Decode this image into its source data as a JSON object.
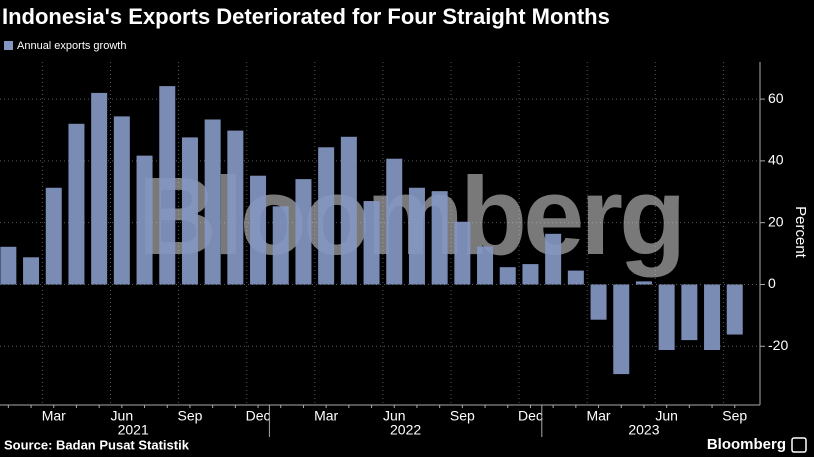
{
  "chart_data": {
    "type": "bar",
    "title": "Indonesia's Exports Deteriorated for Four Straight Months",
    "y_label": "Percent",
    "watermark": "Bloomberg",
    "source": "Source: Badan Pusat Statistik",
    "brand": "Bloomberg",
    "categories": [
      null,
      null,
      "Mar",
      null,
      null,
      "Jun",
      null,
      null,
      "Sep",
      null,
      null,
      "Dec",
      null,
      null,
      "Mar",
      null,
      null,
      "Jun",
      null,
      null,
      "Sep",
      null,
      null,
      "Dec",
      null,
      null,
      "Mar",
      null,
      null,
      "Jun",
      null,
      null,
      "Sep"
    ],
    "year_labels": [
      "2021",
      "2022",
      "2023"
    ],
    "series": [
      {
        "name": "Annual exports growth",
        "color": "#8497c3",
        "values": [
          12.2,
          8.8,
          31.3,
          52.0,
          62.0,
          54.4,
          41.7,
          64.2,
          47.6,
          53.4,
          49.8,
          35.2,
          25.3,
          34.1,
          44.4,
          47.8,
          27.0,
          40.7,
          31.3,
          30.2,
          20.3,
          12.3,
          5.6,
          6.6,
          16.4,
          4.5,
          -11.4,
          -29.0,
          1.0,
          -21.2,
          -18.0,
          -21.2,
          -16.2
        ]
      }
    ],
    "ylim": [
      -39,
      72
    ],
    "yticks": [
      -20,
      0,
      20,
      40,
      60
    ],
    "grid": true
  }
}
